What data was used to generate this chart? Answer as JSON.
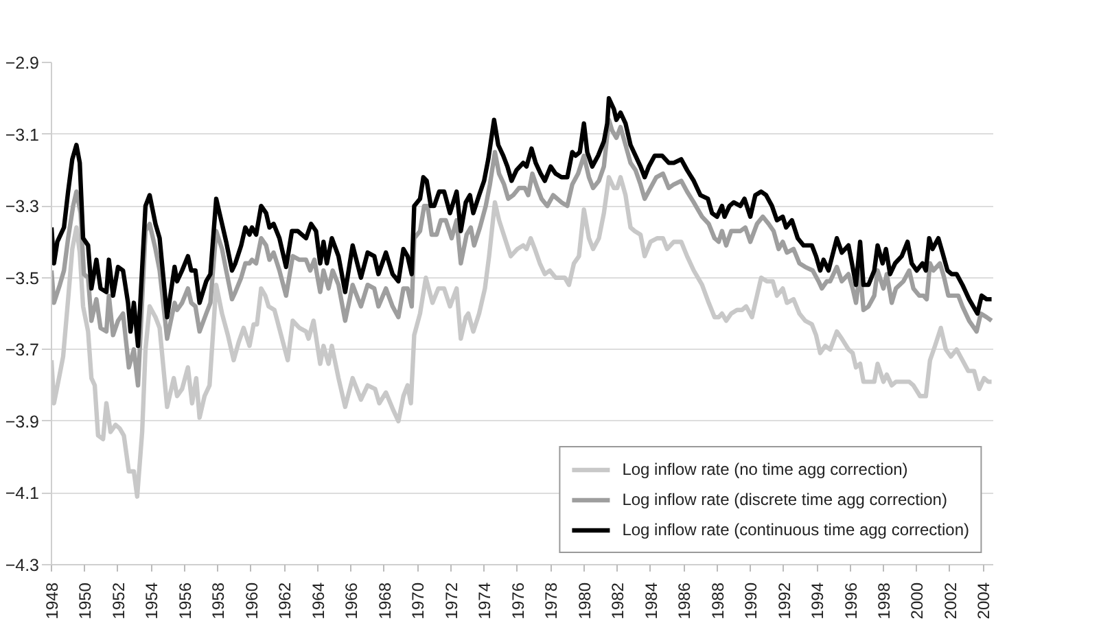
{
  "chart_data": {
    "type": "line",
    "xlim": [
      1948,
      2004.6
    ],
    "ylim": [
      -4.3,
      -2.9
    ],
    "xticks": [
      1948,
      1950,
      1952,
      1954,
      1956,
      1958,
      1960,
      1962,
      1964,
      1966,
      1968,
      1970,
      1972,
      1974,
      1976,
      1978,
      1980,
      1982,
      1984,
      1986,
      1988,
      1990,
      1992,
      1994,
      1996,
      1998,
      2000,
      2002,
      2004
    ],
    "yticks": [
      {
        "value": -2.9,
        "label": "−2.9"
      },
      {
        "value": -3.1,
        "label": "−3.1"
      },
      {
        "value": -3.3,
        "label": "−3.3"
      },
      {
        "value": -3.5,
        "label": "−3.5"
      },
      {
        "value": -3.7,
        "label": "−3.7"
      },
      {
        "value": -3.9,
        "label": "−3.9"
      },
      {
        "value": -4.1,
        "label": "−4.1"
      },
      {
        "value": -4.3,
        "label": "−4.3"
      }
    ],
    "grid": "y",
    "legend": "bottom right",
    "series": [
      {
        "name": "Log inflow rate (no time agg correction)",
        "color": "#c8c8c8",
        "x": [
          1948.0,
          1948.15,
          1948.45,
          1948.7,
          1949.0,
          1949.25,
          1949.5,
          1949.7,
          1949.9,
          1950.2,
          1950.4,
          1950.6,
          1950.8,
          1951.1,
          1951.3,
          1951.55,
          1951.85,
          1952.1,
          1952.35,
          1952.65,
          1952.95,
          1953.15,
          1953.45,
          1953.65,
          1953.9,
          1954.25,
          1954.5,
          1954.95,
          1955.35,
          1955.55,
          1955.85,
          1956.2,
          1956.45,
          1956.7,
          1956.9,
          1957.2,
          1957.5,
          1957.9,
          1958.25,
          1958.6,
          1958.95,
          1959.25,
          1959.55,
          1959.9,
          1960.15,
          1960.35,
          1960.6,
          1960.85,
          1961.05,
          1961.4,
          1961.8,
          1962.2,
          1962.5,
          1962.9,
          1963.3,
          1963.45,
          1963.75,
          1964.15,
          1964.35,
          1964.65,
          1964.85,
          1965.25,
          1965.65,
          1966.1,
          1966.6,
          1967.0,
          1967.45,
          1967.7,
          1968.1,
          1968.55,
          1968.85,
          1969.15,
          1969.4,
          1969.6,
          1969.8,
          1970.15,
          1970.5,
          1970.9,
          1971.25,
          1971.6,
          1971.95,
          1972.35,
          1972.6,
          1972.9,
          1973.05,
          1973.35,
          1973.7,
          1974.05,
          1974.3,
          1974.65,
          1974.9,
          1975.25,
          1975.6,
          1976.0,
          1976.35,
          1976.55,
          1976.8,
          1977.05,
          1977.35,
          1977.65,
          1977.95,
          1978.3,
          1978.85,
          1979.1,
          1979.4,
          1979.7,
          1980.0,
          1980.3,
          1980.55,
          1980.9,
          1981.2,
          1981.5,
          1981.8,
          1982.0,
          1982.2,
          1982.5,
          1982.8,
          1983.05,
          1983.4,
          1983.65,
          1984.0,
          1984.4,
          1984.75,
          1985.0,
          1985.4,
          1985.85,
          1986.2,
          1986.6,
          1987.1,
          1987.5,
          1987.85,
          1988.1,
          1988.3,
          1988.55,
          1988.85,
          1989.2,
          1989.5,
          1989.75,
          1990.1,
          1990.4,
          1990.65,
          1991.0,
          1991.35,
          1991.6,
          1991.95,
          1992.2,
          1992.6,
          1992.95,
          1993.3,
          1993.7,
          1993.95,
          1994.2,
          1994.5,
          1994.8,
          1995.2,
          1995.5,
          1995.9,
          1996.15,
          1996.35,
          1996.6,
          1996.8,
          1997.1,
          1997.45,
          1997.65,
          1998.0,
          1998.2,
          1998.5,
          1998.75,
          1999.2,
          1999.55,
          1999.8,
          2000.2,
          2000.55,
          2000.8,
          2001.1,
          2001.45,
          2001.75,
          2002.05,
          2002.4,
          2002.75,
          2003.1,
          2003.45,
          2003.75,
          2004.05,
          2004.3,
          2004.5
        ],
        "values": [
          -3.73,
          -3.85,
          -3.78,
          -3.72,
          -3.56,
          -3.42,
          -3.36,
          -3.43,
          -3.58,
          -3.65,
          -3.78,
          -3.8,
          -3.94,
          -3.95,
          -3.85,
          -3.93,
          -3.91,
          -3.92,
          -3.94,
          -4.04,
          -4.04,
          -4.11,
          -3.93,
          -3.7,
          -3.58,
          -3.61,
          -3.64,
          -3.86,
          -3.78,
          -3.83,
          -3.81,
          -3.75,
          -3.85,
          -3.78,
          -3.89,
          -3.83,
          -3.8,
          -3.52,
          -3.6,
          -3.66,
          -3.73,
          -3.68,
          -3.64,
          -3.69,
          -3.63,
          -3.63,
          -3.53,
          -3.55,
          -3.58,
          -3.59,
          -3.66,
          -3.73,
          -3.62,
          -3.64,
          -3.65,
          -3.67,
          -3.62,
          -3.74,
          -3.69,
          -3.74,
          -3.69,
          -3.78,
          -3.86,
          -3.78,
          -3.84,
          -3.8,
          -3.81,
          -3.85,
          -3.82,
          -3.87,
          -3.9,
          -3.83,
          -3.8,
          -3.85,
          -3.66,
          -3.6,
          -3.5,
          -3.57,
          -3.53,
          -3.53,
          -3.58,
          -3.53,
          -3.67,
          -3.61,
          -3.6,
          -3.65,
          -3.6,
          -3.53,
          -3.44,
          -3.29,
          -3.34,
          -3.39,
          -3.44,
          -3.42,
          -3.41,
          -3.42,
          -3.39,
          -3.42,
          -3.46,
          -3.49,
          -3.48,
          -3.5,
          -3.5,
          -3.52,
          -3.46,
          -3.44,
          -3.31,
          -3.39,
          -3.42,
          -3.39,
          -3.32,
          -3.22,
          -3.25,
          -3.25,
          -3.22,
          -3.27,
          -3.36,
          -3.37,
          -3.38,
          -3.44,
          -3.4,
          -3.39,
          -3.39,
          -3.42,
          -3.4,
          -3.4,
          -3.44,
          -3.48,
          -3.52,
          -3.57,
          -3.61,
          -3.61,
          -3.6,
          -3.62,
          -3.6,
          -3.59,
          -3.59,
          -3.58,
          -3.61,
          -3.55,
          -3.5,
          -3.51,
          -3.51,
          -3.55,
          -3.53,
          -3.57,
          -3.56,
          -3.6,
          -3.62,
          -3.63,
          -3.66,
          -3.71,
          -3.69,
          -3.7,
          -3.65,
          -3.67,
          -3.7,
          -3.71,
          -3.75,
          -3.74,
          -3.79,
          -3.79,
          -3.79,
          -3.74,
          -3.79,
          -3.77,
          -3.8,
          -3.79,
          -3.79,
          -3.79,
          -3.8,
          -3.83,
          -3.83,
          -3.73,
          -3.69,
          -3.64,
          -3.7,
          -3.72,
          -3.7,
          -3.73,
          -3.76,
          -3.76,
          -3.81,
          -3.78,
          -3.79,
          -3.79
        ]
      },
      {
        "name": "Log inflow rate (discrete time agg correction)",
        "color": "#9e9e9e",
        "x": [
          1948.0,
          1948.15,
          1948.5,
          1948.75,
          1949.0,
          1949.3,
          1949.5,
          1949.75,
          1949.95,
          1950.2,
          1950.4,
          1950.7,
          1950.95,
          1951.3,
          1951.45,
          1951.7,
          1952.0,
          1952.3,
          1952.65,
          1952.95,
          1953.2,
          1953.65,
          1953.9,
          1954.25,
          1954.5,
          1954.95,
          1955.4,
          1955.55,
          1955.85,
          1956.2,
          1956.4,
          1956.65,
          1956.9,
          1957.3,
          1957.55,
          1957.9,
          1958.25,
          1958.5,
          1958.85,
          1959.05,
          1959.4,
          1959.65,
          1959.9,
          1960.05,
          1960.3,
          1960.6,
          1960.9,
          1961.1,
          1961.35,
          1961.7,
          1962.1,
          1962.5,
          1962.9,
          1963.3,
          1963.55,
          1963.8,
          1964.15,
          1964.35,
          1964.65,
          1964.9,
          1965.25,
          1965.65,
          1966.1,
          1966.6,
          1967.0,
          1967.4,
          1967.65,
          1968.1,
          1968.5,
          1968.85,
          1969.15,
          1969.4,
          1969.65,
          1969.8,
          1970.15,
          1970.4,
          1970.6,
          1970.85,
          1971.15,
          1971.4,
          1971.7,
          1972.05,
          1972.35,
          1972.6,
          1972.95,
          1973.2,
          1973.4,
          1973.75,
          1974.1,
          1974.35,
          1974.65,
          1974.9,
          1975.2,
          1975.45,
          1975.75,
          1976.1,
          1976.45,
          1976.65,
          1976.9,
          1977.2,
          1977.45,
          1977.8,
          1978.15,
          1978.65,
          1979.0,
          1979.3,
          1979.65,
          1980.0,
          1980.3,
          1980.55,
          1980.9,
          1981.2,
          1981.5,
          1981.7,
          1981.95,
          1982.2,
          1982.5,
          1982.8,
          1983.1,
          1983.4,
          1983.65,
          1984.0,
          1984.35,
          1984.75,
          1985.1,
          1985.4,
          1985.85,
          1986.2,
          1986.6,
          1987.1,
          1987.5,
          1987.85,
          1988.1,
          1988.3,
          1988.55,
          1988.85,
          1989.15,
          1989.4,
          1989.7,
          1990.0,
          1990.4,
          1990.75,
          1991.1,
          1991.4,
          1991.7,
          1991.95,
          1992.2,
          1992.6,
          1992.95,
          1993.3,
          1993.75,
          1994.1,
          1994.3,
          1994.6,
          1994.8,
          1995.2,
          1995.5,
          1995.9,
          1996.15,
          1996.35,
          1996.6,
          1996.8,
          1997.1,
          1997.45,
          1997.65,
          1998.0,
          1998.2,
          1998.5,
          1998.75,
          1999.2,
          1999.55,
          1999.8,
          2000.15,
          2000.4,
          2000.6,
          2000.8,
          2001.0,
          2001.4,
          2001.65,
          2001.9,
          2002.2,
          2002.5,
          2002.75,
          2003.15,
          2003.6,
          2003.85,
          2004.2,
          2004.5
        ],
        "values": [
          -3.48,
          -3.57,
          -3.52,
          -3.48,
          -3.39,
          -3.3,
          -3.26,
          -3.32,
          -3.49,
          -3.5,
          -3.62,
          -3.56,
          -3.64,
          -3.65,
          -3.55,
          -3.66,
          -3.62,
          -3.6,
          -3.75,
          -3.7,
          -3.8,
          -3.37,
          -3.35,
          -3.42,
          -3.48,
          -3.67,
          -3.57,
          -3.59,
          -3.57,
          -3.53,
          -3.57,
          -3.58,
          -3.65,
          -3.6,
          -3.57,
          -3.37,
          -3.42,
          -3.48,
          -3.56,
          -3.54,
          -3.5,
          -3.46,
          -3.46,
          -3.45,
          -3.46,
          -3.39,
          -3.41,
          -3.45,
          -3.43,
          -3.48,
          -3.55,
          -3.44,
          -3.45,
          -3.45,
          -3.48,
          -3.45,
          -3.54,
          -3.48,
          -3.53,
          -3.48,
          -3.52,
          -3.62,
          -3.52,
          -3.58,
          -3.52,
          -3.53,
          -3.58,
          -3.53,
          -3.58,
          -3.61,
          -3.53,
          -3.53,
          -3.58,
          -3.39,
          -3.37,
          -3.3,
          -3.3,
          -3.38,
          -3.38,
          -3.34,
          -3.34,
          -3.39,
          -3.34,
          -3.46,
          -3.38,
          -3.36,
          -3.41,
          -3.36,
          -3.3,
          -3.24,
          -3.15,
          -3.21,
          -3.24,
          -3.28,
          -3.27,
          -3.25,
          -3.25,
          -3.27,
          -3.21,
          -3.25,
          -3.28,
          -3.3,
          -3.27,
          -3.29,
          -3.3,
          -3.24,
          -3.21,
          -3.16,
          -3.22,
          -3.25,
          -3.23,
          -3.19,
          -3.06,
          -3.09,
          -3.11,
          -3.08,
          -3.13,
          -3.18,
          -3.2,
          -3.24,
          -3.28,
          -3.25,
          -3.22,
          -3.21,
          -3.25,
          -3.24,
          -3.23,
          -3.26,
          -3.29,
          -3.33,
          -3.35,
          -3.39,
          -3.4,
          -3.37,
          -3.41,
          -3.37,
          -3.37,
          -3.37,
          -3.36,
          -3.4,
          -3.35,
          -3.33,
          -3.35,
          -3.37,
          -3.42,
          -3.4,
          -3.43,
          -3.42,
          -3.46,
          -3.47,
          -3.48,
          -3.51,
          -3.53,
          -3.51,
          -3.51,
          -3.47,
          -3.51,
          -3.49,
          -3.53,
          -3.57,
          -3.48,
          -3.59,
          -3.58,
          -3.55,
          -3.48,
          -3.53,
          -3.49,
          -3.57,
          -3.53,
          -3.51,
          -3.48,
          -3.53,
          -3.55,
          -3.55,
          -3.56,
          -3.46,
          -3.48,
          -3.46,
          -3.5,
          -3.55,
          -3.55,
          -3.55,
          -3.58,
          -3.62,
          -3.65,
          -3.6,
          -3.61,
          -3.62
        ]
      },
      {
        "name": "Log inflow rate (continuous time agg correction)",
        "color": "#000000",
        "x": [
          1948.0,
          1948.15,
          1948.35,
          1948.75,
          1949.0,
          1949.25,
          1949.5,
          1949.7,
          1949.9,
          1950.2,
          1950.4,
          1950.7,
          1950.95,
          1951.3,
          1951.45,
          1951.7,
          1952.0,
          1952.3,
          1952.6,
          1952.75,
          1952.95,
          1953.2,
          1953.65,
          1953.9,
          1954.25,
          1954.5,
          1954.95,
          1955.4,
          1955.55,
          1955.85,
          1956.2,
          1956.4,
          1956.65,
          1956.9,
          1957.3,
          1957.55,
          1957.9,
          1958.25,
          1958.5,
          1958.85,
          1959.05,
          1959.4,
          1959.65,
          1959.9,
          1960.05,
          1960.3,
          1960.6,
          1960.9,
          1961.1,
          1961.35,
          1961.7,
          1962.1,
          1962.45,
          1962.8,
          1963.3,
          1963.6,
          1963.9,
          1964.15,
          1964.35,
          1964.55,
          1964.85,
          1965.25,
          1965.65,
          1966.1,
          1966.6,
          1967.0,
          1967.4,
          1967.65,
          1968.1,
          1968.5,
          1968.85,
          1969.15,
          1969.4,
          1969.65,
          1969.8,
          1970.15,
          1970.35,
          1970.55,
          1970.8,
          1971.0,
          1971.3,
          1971.6,
          1971.95,
          1972.35,
          1972.6,
          1972.9,
          1973.15,
          1973.35,
          1973.7,
          1974.0,
          1974.25,
          1974.6,
          1974.85,
          1975.15,
          1975.4,
          1975.65,
          1975.95,
          1976.35,
          1976.55,
          1976.85,
          1977.1,
          1977.4,
          1977.65,
          1978.0,
          1978.3,
          1978.65,
          1979.0,
          1979.3,
          1979.5,
          1979.75,
          1980.0,
          1980.2,
          1980.5,
          1980.85,
          1981.2,
          1981.4,
          1981.5,
          1981.8,
          1981.95,
          1982.2,
          1982.5,
          1982.8,
          1983.1,
          1983.4,
          1983.65,
          1983.9,
          1984.25,
          1984.7,
          1985.1,
          1985.4,
          1985.85,
          1986.2,
          1986.6,
          1987.0,
          1987.45,
          1987.7,
          1988.0,
          1988.3,
          1988.45,
          1988.75,
          1989.0,
          1989.4,
          1989.65,
          1990.0,
          1990.3,
          1990.65,
          1990.95,
          1991.3,
          1991.6,
          1991.95,
          1992.15,
          1992.5,
          1992.85,
          1993.2,
          1993.7,
          1993.95,
          1994.2,
          1994.4,
          1994.7,
          1995.2,
          1995.5,
          1995.9,
          1996.15,
          1996.35,
          1996.6,
          1996.8,
          1997.1,
          1997.45,
          1997.65,
          1997.95,
          1998.15,
          1998.4,
          1998.7,
          1999.1,
          1999.45,
          1999.7,
          2000.0,
          2000.35,
          2000.55,
          2000.75,
          2000.95,
          2001.3,
          2001.55,
          2001.85,
          2002.1,
          2002.4,
          2002.75,
          2003.15,
          2003.65,
          2003.9,
          2004.2,
          2004.5
        ],
        "values": [
          -3.36,
          -3.46,
          -3.4,
          -3.36,
          -3.26,
          -3.17,
          -3.13,
          -3.18,
          -3.39,
          -3.41,
          -3.53,
          -3.45,
          -3.53,
          -3.54,
          -3.45,
          -3.55,
          -3.47,
          -3.48,
          -3.57,
          -3.65,
          -3.57,
          -3.69,
          -3.3,
          -3.27,
          -3.35,
          -3.39,
          -3.61,
          -3.47,
          -3.51,
          -3.48,
          -3.44,
          -3.48,
          -3.48,
          -3.57,
          -3.51,
          -3.49,
          -3.28,
          -3.35,
          -3.4,
          -3.48,
          -3.46,
          -3.41,
          -3.36,
          -3.38,
          -3.36,
          -3.38,
          -3.3,
          -3.32,
          -3.36,
          -3.35,
          -3.39,
          -3.47,
          -3.37,
          -3.37,
          -3.39,
          -3.35,
          -3.37,
          -3.46,
          -3.4,
          -3.46,
          -3.39,
          -3.44,
          -3.54,
          -3.41,
          -3.5,
          -3.43,
          -3.44,
          -3.49,
          -3.43,
          -3.49,
          -3.51,
          -3.42,
          -3.44,
          -3.49,
          -3.3,
          -3.28,
          -3.22,
          -3.23,
          -3.3,
          -3.3,
          -3.26,
          -3.26,
          -3.32,
          -3.26,
          -3.37,
          -3.29,
          -3.27,
          -3.32,
          -3.27,
          -3.23,
          -3.17,
          -3.06,
          -3.13,
          -3.16,
          -3.19,
          -3.23,
          -3.2,
          -3.18,
          -3.19,
          -3.14,
          -3.18,
          -3.21,
          -3.23,
          -3.19,
          -3.21,
          -3.22,
          -3.22,
          -3.15,
          -3.16,
          -3.15,
          -3.07,
          -3.15,
          -3.19,
          -3.16,
          -3.12,
          -3.07,
          -3.0,
          -3.03,
          -3.06,
          -3.04,
          -3.07,
          -3.13,
          -3.16,
          -3.19,
          -3.22,
          -3.19,
          -3.16,
          -3.16,
          -3.18,
          -3.18,
          -3.17,
          -3.2,
          -3.23,
          -3.27,
          -3.28,
          -3.32,
          -3.33,
          -3.3,
          -3.33,
          -3.3,
          -3.29,
          -3.3,
          -3.28,
          -3.33,
          -3.27,
          -3.26,
          -3.27,
          -3.3,
          -3.34,
          -3.33,
          -3.36,
          -3.34,
          -3.39,
          -3.41,
          -3.41,
          -3.44,
          -3.48,
          -3.45,
          -3.48,
          -3.39,
          -3.43,
          -3.41,
          -3.47,
          -3.52,
          -3.4,
          -3.52,
          -3.52,
          -3.48,
          -3.41,
          -3.46,
          -3.42,
          -3.49,
          -3.46,
          -3.44,
          -3.4,
          -3.46,
          -3.48,
          -3.46,
          -3.48,
          -3.39,
          -3.42,
          -3.39,
          -3.43,
          -3.48,
          -3.49,
          -3.49,
          -3.52,
          -3.56,
          -3.6,
          -3.55,
          -3.56,
          -3.56
        ]
      }
    ]
  }
}
